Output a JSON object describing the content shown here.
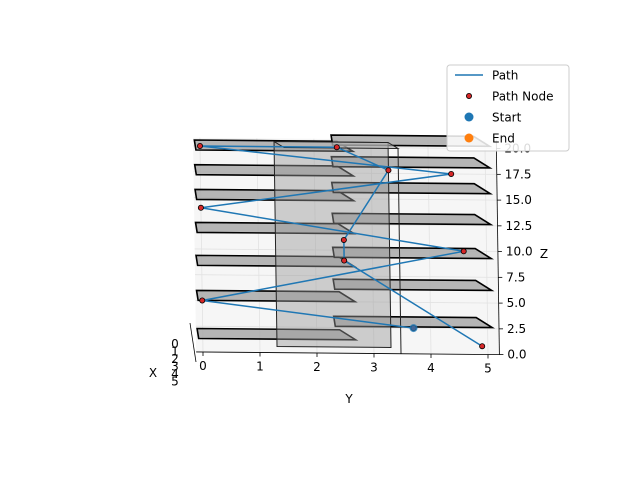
{
  "chart_data": {
    "type": "3d-line",
    "xlabel": "X",
    "ylabel": "Y",
    "zlabel": "Z",
    "x_ticks": [
      "0",
      "1",
      "2",
      "3",
      "4",
      "5"
    ],
    "y_ticks": [
      "0",
      "1",
      "2",
      "3",
      "4",
      "5"
    ],
    "z_ticks": [
      "0.0",
      "2.5",
      "5.0",
      "7.5",
      "10.0",
      "12.5",
      "15.0",
      "17.5",
      "20.0"
    ],
    "xlim": [
      0,
      5
    ],
    "ylim": [
      0,
      5
    ],
    "zlim": [
      0,
      20
    ],
    "grid": true,
    "legend_position": "top-right",
    "legend": [
      {
        "label": "Path",
        "kind": "line",
        "color": "#1f77b4"
      },
      {
        "label": "Path Node",
        "kind": "dot",
        "color": "#8b0000"
      },
      {
        "label": "Start",
        "kind": "marker",
        "color": "#1f77b4"
      },
      {
        "label": "End",
        "kind": "marker",
        "color": "#ff7f0e"
      }
    ],
    "path": [
      {
        "y": 3.7,
        "z": 2.5
      },
      {
        "y": 0.0,
        "z": 5.0
      },
      {
        "y": 4.6,
        "z": 10.0
      },
      {
        "y": 0.0,
        "z": 14.0
      },
      {
        "y": 4.4,
        "z": 17.5
      },
      {
        "y": 0.0,
        "z": 20.0
      },
      {
        "y": 2.4,
        "z": 20.0
      },
      {
        "y": 3.3,
        "z": 17.8
      },
      {
        "y": 2.5,
        "z": 11.0
      },
      {
        "y": 2.5,
        "z": 9.0
      },
      {
        "y": 4.9,
        "z": 0.8
      }
    ],
    "start": {
      "y": 3.7,
      "z": 2.5
    },
    "floors": [
      {
        "y0": -0.1,
        "y1": 2.4,
        "z": 1.5
      },
      {
        "y0": 2.3,
        "y1": 4.8,
        "z": 2.8
      },
      {
        "y0": -0.1,
        "y1": 2.4,
        "z": 5.2
      },
      {
        "y0": 2.3,
        "y1": 4.8,
        "z": 6.4
      },
      {
        "y0": -0.1,
        "y1": 2.4,
        "z": 8.6
      },
      {
        "y0": 2.3,
        "y1": 4.8,
        "z": 9.5
      },
      {
        "y0": -0.1,
        "y1": 2.4,
        "z": 11.8
      },
      {
        "y0": 2.3,
        "y1": 4.8,
        "z": 12.8
      },
      {
        "y0": -0.1,
        "y1": 2.4,
        "z": 15.0
      },
      {
        "y0": 2.3,
        "y1": 4.8,
        "z": 15.8
      },
      {
        "y0": -0.1,
        "y1": 2.4,
        "z": 17.4
      },
      {
        "y0": 2.3,
        "y1": 4.8,
        "z": 18.3
      },
      {
        "y0": -0.1,
        "y1": 2.4,
        "z": 19.8
      },
      {
        "y0": 2.3,
        "y1": 4.8,
        "z": 20.4
      }
    ],
    "column": {
      "y0": 1.3,
      "y1": 3.3,
      "z0": 0.6,
      "z1": 20.5
    }
  }
}
